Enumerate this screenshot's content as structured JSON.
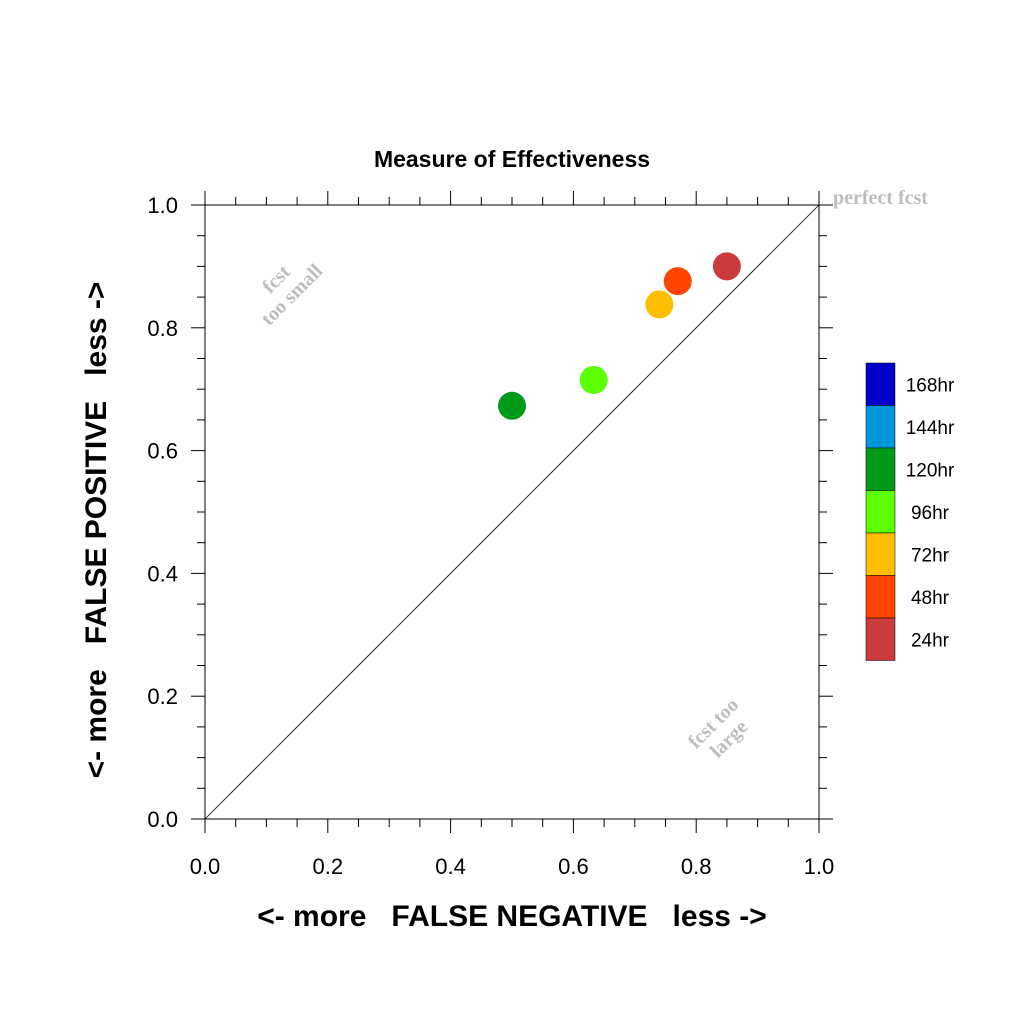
{
  "chart_data": {
    "type": "scatter",
    "title": "Measure of Effectiveness",
    "xlabel": "<- more   FALSE NEGATIVE   less ->",
    "ylabel": "<- more   FALSE POSITIVE   less ->",
    "xlim": [
      0.0,
      1.0
    ],
    "ylim": [
      0.0,
      1.0
    ],
    "x_ticks": [
      "0.0",
      "0.2",
      "0.4",
      "0.6",
      "0.8",
      "1.0"
    ],
    "y_ticks": [
      "0.0",
      "0.2",
      "0.4",
      "0.6",
      "0.8",
      "1.0"
    ],
    "diagonal": true,
    "grid": false,
    "annotations": {
      "perfect": "perfect fcst",
      "too_small_line1": "fcst",
      "too_small_line2": "too small",
      "too_large_line1": "fcst too",
      "too_large_line2": "large"
    },
    "points": [
      {
        "label": "24hr",
        "x": 0.85,
        "y": 0.9,
        "color": "#cc3b3b"
      },
      {
        "label": "48hr",
        "x": 0.77,
        "y": 0.876,
        "color": "#ff4500"
      },
      {
        "label": "72hr",
        "x": 0.74,
        "y": 0.838,
        "color": "#ffbf00"
      },
      {
        "label": "96hr",
        "x": 0.633,
        "y": 0.715,
        "color": "#5cff00"
      },
      {
        "label": "120hr",
        "x": 0.5,
        "y": 0.673,
        "color": "#009a1a"
      }
    ],
    "legend": {
      "placement": "right",
      "entries": [
        {
          "label": "168hr",
          "color": "#0000c8"
        },
        {
          "label": "144hr",
          "color": "#0096dc"
        },
        {
          "label": "120hr",
          "color": "#009a1a"
        },
        {
          "label": "96hr",
          "color": "#5cff00"
        },
        {
          "label": "72hr",
          "color": "#ffbf00"
        },
        {
          "label": "48hr",
          "color": "#ff4500"
        },
        {
          "label": "24hr",
          "color": "#cc3b3b"
        }
      ]
    }
  }
}
